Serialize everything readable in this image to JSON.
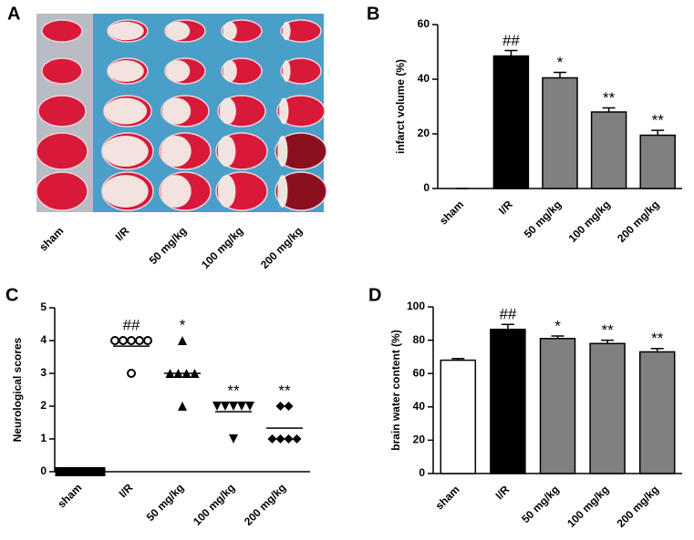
{
  "chart_data": [
    {
      "type": "image",
      "panel": "A",
      "categories": [
        "sham",
        "I/R",
        "50 mg/kg",
        "100 mg/kg",
        "200 mg/kg"
      ]
    },
    {
      "type": "bar",
      "panel": "B",
      "ylabel": "infarct volume (%)",
      "categories": [
        "sham",
        "I/R",
        "50 mg/kg",
        "100 mg/kg",
        "200 mg/kg"
      ],
      "values": [
        0,
        48.5,
        40.5,
        28,
        19.5
      ],
      "errors": [
        0,
        2,
        2,
        1.5,
        1.8
      ],
      "annotations": [
        null,
        "##",
        "*",
        "**",
        "**"
      ],
      "colors": [
        "#000000",
        "#000000",
        "#808080",
        "#808080",
        "#808080"
      ],
      "ylim": [
        0,
        60
      ],
      "yticks": [
        0,
        20,
        40,
        60
      ]
    },
    {
      "type": "scatter",
      "panel": "C",
      "ylabel": "Neurological scores",
      "categories": [
        "sham",
        "I/R",
        "50 mg/kg",
        "100 mg/kg",
        "200 mg/kg"
      ],
      "values": [
        [
          0,
          0,
          0,
          0,
          0,
          0
        ],
        [
          4,
          4,
          4,
          4,
          4,
          3
        ],
        [
          4,
          3,
          3,
          3,
          3,
          2
        ],
        [
          2,
          2,
          2,
          2,
          2,
          1
        ],
        [
          2,
          2,
          1,
          1,
          1,
          1
        ]
      ],
      "means": [
        0,
        3.83,
        3,
        1.83,
        1.33
      ],
      "markers": [
        "square",
        "circle",
        "triangle",
        "triangle-down",
        "diamond"
      ],
      "annotations": [
        null,
        "##",
        "*",
        "**",
        "**"
      ],
      "ylim": [
        0,
        5
      ],
      "yticks": [
        0,
        1,
        2,
        3,
        4,
        5
      ]
    },
    {
      "type": "bar",
      "panel": "D",
      "ylabel": "brain water content (%)",
      "categories": [
        "sham",
        "I/R",
        "50 mg/kg",
        "100 mg/kg",
        "200 mg/kg"
      ],
      "values": [
        68,
        86.5,
        81,
        78,
        73
      ],
      "errors": [
        1,
        3,
        1.5,
        2,
        2
      ],
      "annotations": [
        null,
        "##",
        "*",
        "**",
        "**"
      ],
      "colors": [
        "#ffffff",
        "#000000",
        "#808080",
        "#808080",
        "#808080"
      ],
      "ylim": [
        0,
        100
      ],
      "yticks": [
        0,
        20,
        40,
        60,
        80,
        100
      ]
    }
  ]
}
